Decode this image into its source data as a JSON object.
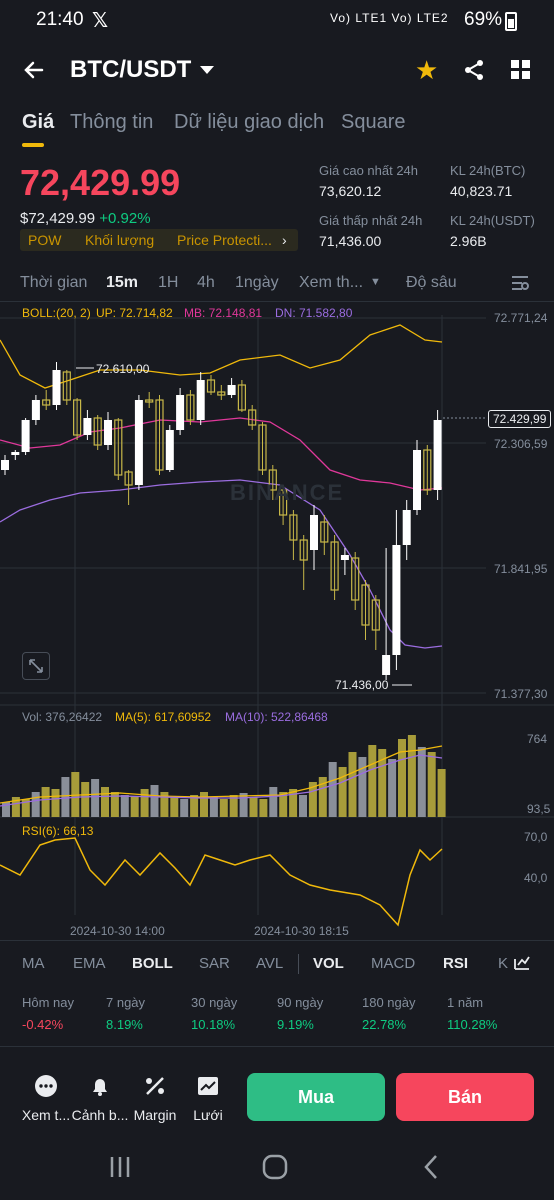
{
  "status": {
    "time": "21:40",
    "x": "𝕏",
    "signal": "Vo) LTE1 Vo) LTE2",
    "battery": "69%"
  },
  "header": {
    "pair": "BTC/USDT"
  },
  "tabs": [
    "Giá",
    "Thông tin",
    "Dữ liệu giao dịch",
    "Square"
  ],
  "price": {
    "last": "72,429.99",
    "usd": "$72,429.99",
    "change": "+0.92%",
    "tags": [
      "POW",
      "Khối lượng",
      "Price Protecti..."
    ],
    "high_label": "Giá cao nhất 24h",
    "high": "73,620.12",
    "low_label": "Giá thấp nhất 24h",
    "low": "71,436.00",
    "vol_btc_label": "KL 24h(BTC)",
    "vol_btc": "40,823.71",
    "vol_usdt_label": "KL 24h(USDT)",
    "vol_usdt": "2.96B"
  },
  "timeframes": [
    "Thời gian",
    "15m",
    "1H",
    "4h",
    "1ngày",
    "Xem th...",
    "Độ sâu"
  ],
  "chart": {
    "boll_label": "BOLL:(20, 2)",
    "up": "UP: 72.714,82",
    "mb": "MB: 72.148,81",
    "dn": "DN: 71.582,80",
    "y_ticks": [
      "72.771,24",
      "72.306,59",
      "71.841,95",
      "71.377,30"
    ],
    "current_price": "72.429,99",
    "high_mark": "72.610,00",
    "low_mark": "71.436,00",
    "watermark": "BINANCE",
    "vol_label": "Vol: 376,26422",
    "ma5": "MA(5): 617,60952",
    "ma10": "MA(10): 522,86468",
    "vol_ticks": [
      "764",
      "93,5"
    ],
    "rsi_label": "RSI(6): 66,13",
    "rsi_ticks": [
      "70,0",
      "40,0"
    ],
    "x_ticks": [
      "2024-10-30 14:00",
      "2024-10-30 18:15"
    ],
    "colors": {
      "up": "#ffffff",
      "down": "#c8b848",
      "mb": "#e0389a",
      "dn": "#9b6de0",
      "upband": "#f0b90b"
    }
  },
  "indicator_tabs": [
    "MA",
    "EMA",
    "BOLL",
    "SAR",
    "AVL",
    "VOL",
    "MACD",
    "RSI",
    "K"
  ],
  "performance": [
    {
      "label": "Hôm nay",
      "value": "-0.42%"
    },
    {
      "label": "7 ngày",
      "value": "8.19%"
    },
    {
      "label": "30 ngày",
      "value": "10.18%"
    },
    {
      "label": "90 ngày",
      "value": "9.19%"
    },
    {
      "label": "180 ngày",
      "value": "22.78%"
    },
    {
      "label": "1 năm",
      "value": "110.28%"
    }
  ],
  "actions": [
    "Xem t...",
    "Cảnh b...",
    "Margin",
    "Lưới"
  ],
  "buy": "Mua",
  "sell": "Bán"
}
